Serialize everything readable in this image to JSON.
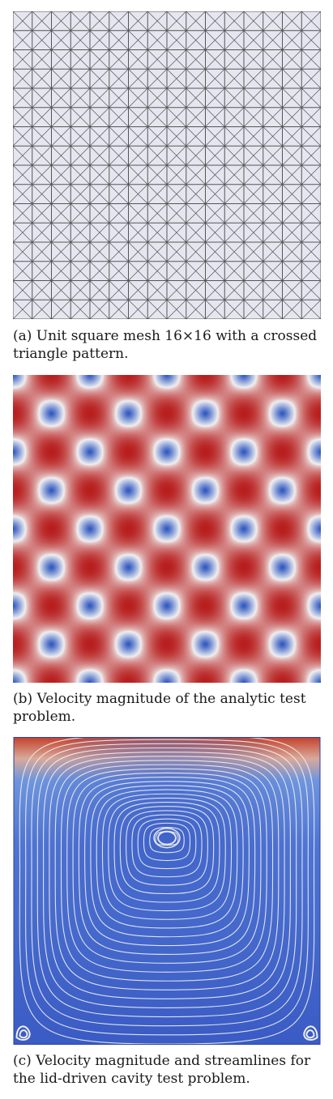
{
  "figures": [
    {
      "id": "a",
      "caption": "(a) Unit square mesh 16×16 with a crossed triangle pattern.",
      "mesh": {
        "cells": 16,
        "pattern": "crossed"
      },
      "colors": {
        "background": "#e6e6f0",
        "line": "#555555"
      }
    },
    {
      "id": "b",
      "caption": "(b) Velocity magnitude of the analytic test problem.",
      "field": {
        "pattern": "periodic",
        "periods": 4
      },
      "colors": {
        "high": "#b81e1e",
        "mid": "#f2f2f2",
        "low": "#2d55c0"
      }
    },
    {
      "id": "c",
      "caption": "(c) Velocity magnitude and streamlines for the lid-driven cavity test problem.",
      "colors": {
        "background": "#3a5bc4",
        "lid": "#c3402a",
        "streamline": "#f0f0f0"
      }
    }
  ]
}
